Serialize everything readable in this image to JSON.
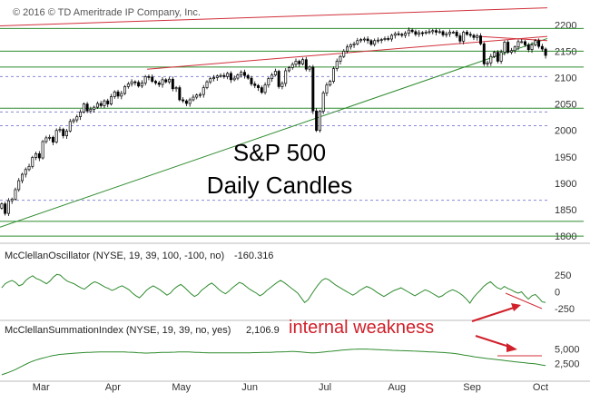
{
  "copyright": "© 2016 © TD Ameritrade IP Company, Inc.",
  "colors": {
    "candle_up": "#ffffff",
    "candle_down": "#000000",
    "support_lines": "#2e8b2e",
    "resistance_lines": "#d0303a",
    "dashed_levels": "#8a8ad8",
    "indicator_line": "#2e8b2e",
    "annotation": "#d0202a"
  },
  "chart_data": [
    {
      "type": "candlestick",
      "title": "S&P 500",
      "subtitle": "Daily Candles",
      "y_ticks": [
        "2200",
        "2150",
        "2100",
        "2050",
        "2000",
        "1950",
        "1900",
        "1850",
        "1800"
      ],
      "ylim": [
        1790,
        2240
      ],
      "x_ticks": [
        "Mar",
        "Apr",
        "May",
        "Jun",
        "Jul",
        "Aug",
        "Sep",
        "Oct"
      ],
      "xlim": [
        0,
        160
      ],
      "x_tick_positions": [
        12,
        33,
        53,
        73,
        95,
        116,
        138,
        158
      ],
      "green_horizontal_levels": [
        2193,
        2150,
        2120,
        2042,
        1828,
        1800
      ],
      "dashed_horizontal_levels": [
        2102,
        2035,
        2009,
        1868
      ],
      "trendlines": [
        {
          "color": "green",
          "from": [
            0,
            1817
          ],
          "to": [
            160,
            2174
          ]
        },
        {
          "color": "red",
          "from": [
            43,
            2116
          ],
          "to": [
            160,
            2178
          ]
        },
        {
          "color": "red",
          "from": [
            0,
            2198
          ],
          "to": [
            160,
            2232
          ]
        },
        {
          "color": "red",
          "from": [
            140,
            2178
          ],
          "to": [
            160,
            2170
          ]
        }
      ],
      "closes": [
        1861,
        1843,
        1867,
        1870,
        1888,
        1905,
        1917,
        1926,
        1932,
        1949,
        1956,
        1948,
        1979,
        1986,
        1987,
        1978,
        2000,
        2002,
        1990,
        1999,
        2017,
        2020,
        2026,
        2035,
        2050,
        2037,
        2040,
        2044,
        2051,
        2047,
        2056,
        2050,
        2064,
        2073,
        2065,
        2070,
        2083,
        2088,
        2092,
        2091,
        2084,
        2090,
        2102,
        2101,
        2093,
        2090,
        2087,
        2096,
        2092,
        2097,
        2079,
        2081,
        2058,
        2056,
        2051,
        2058,
        2063,
        2067,
        2068,
        2081,
        2092,
        2098,
        2100,
        2103,
        2104,
        2102,
        2108,
        2096,
        2099,
        2105,
        2110,
        2104,
        2099,
        2088,
        2085,
        2081,
        2072,
        2086,
        2098,
        2105,
        2112,
        2083,
        2089,
        2113,
        2119,
        2125,
        2131,
        2126,
        2134,
        2116,
        2120,
        2037,
        2000,
        2036,
        2071,
        2086,
        2093,
        2117,
        2131,
        2140,
        2150,
        2158,
        2162,
        2164,
        2170,
        2172,
        2173,
        2170,
        2163,
        2170,
        2171,
        2172,
        2174,
        2173,
        2180,
        2183,
        2182,
        2180,
        2184,
        2190,
        2187,
        2182,
        2185,
        2184,
        2186,
        2187,
        2189,
        2186,
        2187,
        2181,
        2183,
        2186,
        2186,
        2179,
        2169,
        2186,
        2182,
        2180,
        2176,
        2179,
        2164,
        2126,
        2128,
        2140,
        2148,
        2131,
        2148,
        2167,
        2148,
        2151,
        2158,
        2168,
        2168,
        2162,
        2153,
        2162,
        2170,
        2159,
        2154,
        2142
      ],
      "series": [
        {
          "name": "S&P 500",
          "values": []
        }
      ]
    },
    {
      "type": "line",
      "label": "McClellanOscillator (NYSE, 19, 39, 100, -100, no)",
      "last_value": "-160.316",
      "y_ticks": [
        "250",
        "0",
        "-250"
      ],
      "ylim": [
        -400,
        400
      ],
      "values": [
        60,
        120,
        150,
        170,
        140,
        90,
        110,
        170,
        210,
        240,
        200,
        180,
        150,
        120,
        160,
        220,
        260,
        250,
        200,
        160,
        140,
        120,
        90,
        60,
        40,
        80,
        120,
        150,
        130,
        100,
        70,
        50,
        20,
        40,
        70,
        90,
        60,
        30,
        -20,
        -60,
        -90,
        -40,
        20,
        60,
        90,
        60,
        30,
        -10,
        -50,
        -20,
        40,
        80,
        110,
        70,
        20,
        -30,
        -70,
        -40,
        20,
        60,
        100,
        130,
        90,
        40,
        0,
        -30,
        10,
        60,
        100,
        140,
        120,
        80,
        40,
        10,
        -20,
        -60,
        -30,
        20,
        60,
        100,
        140,
        170,
        140,
        100,
        60,
        20,
        -20,
        -90,
        -160,
        -120,
        -40,
        40,
        110,
        170,
        200,
        180,
        140,
        100,
        70,
        40,
        10,
        -20,
        -50,
        -20,
        20,
        50,
        80,
        60,
        30,
        -10,
        -40,
        -70,
        -40,
        -10,
        20,
        40,
        60,
        30,
        0,
        -30,
        -60,
        -30,
        0,
        30,
        10,
        -20,
        -50,
        -80,
        -60,
        -20,
        10,
        30,
        10,
        -20,
        -60,
        -110,
        -170,
        -90,
        -30,
        20,
        80,
        120,
        150,
        100,
        60,
        40,
        80,
        50,
        30,
        0,
        -20,
        0,
        -60,
        -110,
        -60,
        -40,
        -90,
        -150,
        -160
      ]
    },
    {
      "type": "line",
      "label": "McClellanSummationIndex (NYSE, 19, 39, no, yes)",
      "last_value": "2,106.9",
      "y_ticks": [
        "5,000",
        "2,500"
      ],
      "ylim": [
        0,
        7000
      ],
      "values": [
        500,
        700,
        900,
        1150,
        1400,
        1700,
        2000,
        2300,
        2600,
        2850,
        3050,
        3250,
        3400,
        3550,
        3700,
        3850,
        3950,
        4050,
        4100,
        4150,
        4200,
        4250,
        4300,
        4350,
        4380,
        4400,
        4420,
        4450,
        4470,
        4480,
        4490,
        4500,
        4500,
        4500,
        4500,
        4500,
        4480,
        4460,
        4440,
        4400,
        4360,
        4320,
        4300,
        4300,
        4320,
        4350,
        4380,
        4400,
        4420,
        4430,
        4440,
        4460,
        4480,
        4490,
        4500,
        4480,
        4450,
        4420,
        4400,
        4380,
        4360,
        4350,
        4350,
        4350,
        4350,
        4340,
        4330,
        4320,
        4320,
        4320,
        4320,
        4320,
        4330,
        4350,
        4370,
        4380,
        4390,
        4400,
        4410,
        4420,
        4450,
        4480,
        4500,
        4520,
        4540,
        4560,
        4560,
        4540,
        4500,
        4440,
        4380,
        4340,
        4340,
        4380,
        4440,
        4500,
        4560,
        4620,
        4680,
        4740,
        4800,
        4850,
        4900,
        4940,
        4970,
        4990,
        5000,
        4990,
        4970,
        4950,
        4920,
        4890,
        4860,
        4830,
        4800,
        4770,
        4750,
        4730,
        4710,
        4690,
        4670,
        4650,
        4630,
        4600,
        4570,
        4540,
        4510,
        4480,
        4450,
        4420,
        4390,
        4350,
        4300,
        4230,
        4150,
        4050,
        3950,
        3850,
        3750,
        3650,
        3560,
        3480,
        3400,
        3330,
        3260,
        3190,
        3120,
        3050,
        2980,
        2910,
        2840,
        2770,
        2700,
        2640,
        2580,
        2520,
        2460,
        2400,
        2300,
        2200,
        2106.9
      ]
    }
  ],
  "annotation": {
    "text": "internal weakness"
  }
}
